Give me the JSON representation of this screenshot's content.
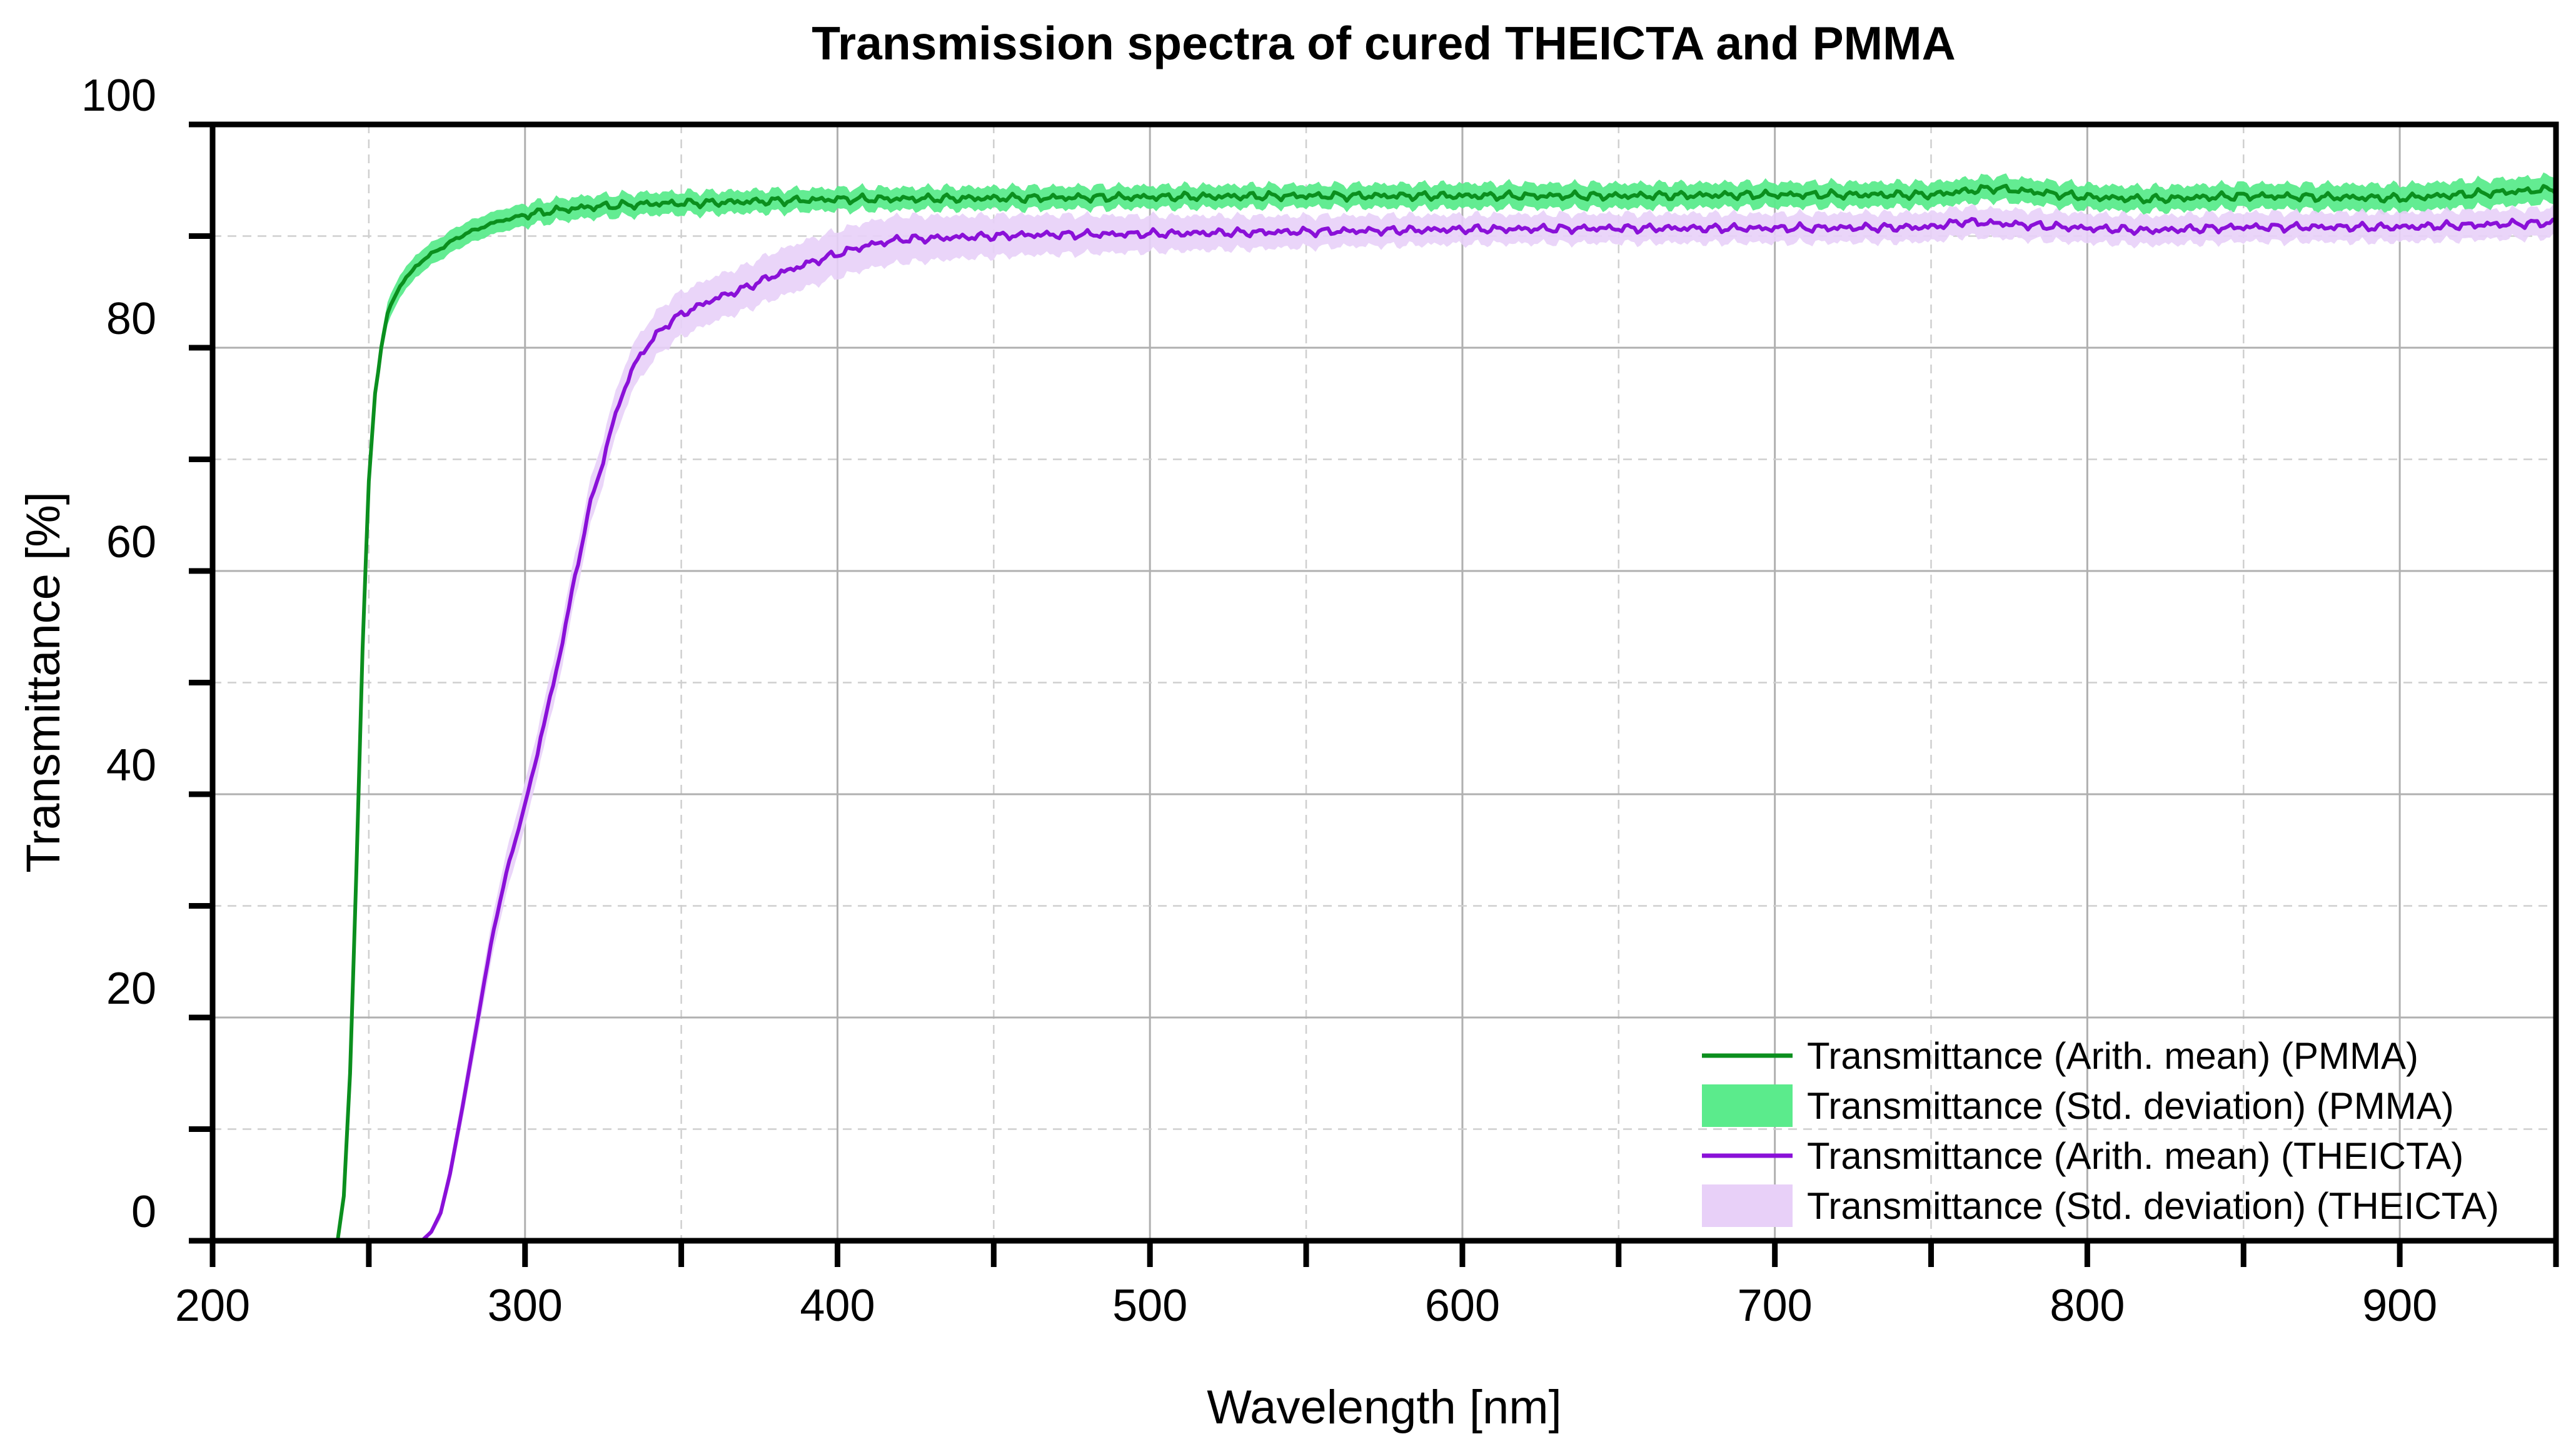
{
  "chart_data": {
    "type": "line",
    "title": "Transmission spectra of cured THEICTA and PMMA",
    "xlabel": "Wavelength [nm]",
    "ylabel": "Transmittance [%]",
    "xlim": [
      200,
      950
    ],
    "ylim": [
      0,
      100
    ],
    "x_ticks": [
      "200",
      "300",
      "400",
      "500",
      "600",
      "700",
      "800",
      "900"
    ],
    "y_ticks": [
      "0",
      "20",
      "40",
      "60",
      "80",
      "100"
    ],
    "grid": true,
    "legend_position": "bottom-right",
    "legend": [
      {
        "label": "Transmittance (Arith. mean) (PMMA)",
        "kind": "line",
        "color": "#0b8f1e"
      },
      {
        "label": "Transmittance (Std. deviation) (PMMA)",
        "kind": "band",
        "color": "#5beb8c"
      },
      {
        "label": "Transmittance (Arith. mean) (THEICTA)",
        "kind": "line",
        "color": "#8a10d8"
      },
      {
        "label": "Transmittance (Std. deviation) (THEICTA)",
        "kind": "band",
        "color": "#e8d0f8"
      }
    ],
    "series": [
      {
        "name": "Transmittance (Arith. mean) (PMMA)",
        "color": "#0b8f1e",
        "band_color": "#5beb8c",
        "x": [
          200,
          240,
          242,
          244,
          246,
          248,
          250,
          252,
          254,
          256,
          258,
          260,
          265,
          270,
          280,
          290,
          300,
          310,
          320,
          340,
          360,
          400,
          450,
          500,
          550,
          600,
          650,
          700,
          750,
          770,
          800,
          820,
          850,
          900,
          950
        ],
        "y": [
          0,
          0,
          4,
          15,
          33,
          53,
          68,
          76,
          80,
          83,
          84.5,
          85.5,
          87.3,
          88.4,
          90.1,
          91.2,
          91.9,
          92.3,
          92.6,
          92.9,
          93.0,
          93.3,
          93.4,
          93.5,
          93.6,
          93.6,
          93.6,
          93.7,
          93.7,
          94.3,
          93.5,
          93.3,
          93.6,
          93.4,
          94.2
        ],
        "std": [
          0,
          0,
          0.5,
          0.8,
          1.0,
          1.0,
          1.0,
          1.0,
          1.0,
          1.0,
          1.0,
          1.0,
          1.0,
          1.0,
          1.0,
          1.0,
          1.0,
          1.0,
          1.0,
          1.0,
          1.0,
          1.0,
          1.0,
          1.0,
          1.0,
          1.1,
          1.1,
          1.1,
          1.1,
          1.1,
          1.1,
          1.1,
          1.1,
          1.2,
          1.2
        ]
      },
      {
        "name": "Transmittance (Arith. mean) (THEICTA)",
        "color": "#8a10d8",
        "band_color": "#e8d0f8",
        "x": [
          200,
          267,
          270,
          273,
          276,
          280,
          285,
          290,
          295,
          300,
          305,
          310,
          315,
          320,
          325,
          330,
          335,
          340,
          345,
          350,
          360,
          370,
          380,
          390,
          400,
          410,
          420,
          440,
          460,
          500,
          550,
          600,
          650,
          700,
          750,
          760,
          780,
          800,
          820,
          850,
          900,
          950
        ],
        "y": [
          0,
          0,
          0.8,
          2.5,
          6,
          12,
          20,
          28,
          34,
          39,
          45,
          51,
          58,
          65,
          70,
          75,
          78.5,
          80.5,
          82,
          83,
          84.3,
          85.3,
          86.5,
          87.5,
          88.4,
          89.2,
          89.7,
          89.9,
          90.1,
          90.2,
          90.4,
          90.6,
          90.7,
          90.7,
          90.8,
          91.3,
          91.0,
          90.7,
          90.5,
          90.8,
          90.8,
          91.2
        ],
        "std": [
          0,
          0,
          0.3,
          0.6,
          0.9,
          1.2,
          1.5,
          1.7,
          1.9,
          2.0,
          2.0,
          2.0,
          2.0,
          2.0,
          2.0,
          2.0,
          2.0,
          2.0,
          2.0,
          2.0,
          2.0,
          2.0,
          2.1,
          2.1,
          2.1,
          2.1,
          2.1,
          1.9,
          1.8,
          1.6,
          1.4,
          1.3,
          1.3,
          1.3,
          1.3,
          1.3,
          1.3,
          1.3,
          1.3,
          1.3,
          1.3,
          1.3
        ]
      }
    ]
  }
}
